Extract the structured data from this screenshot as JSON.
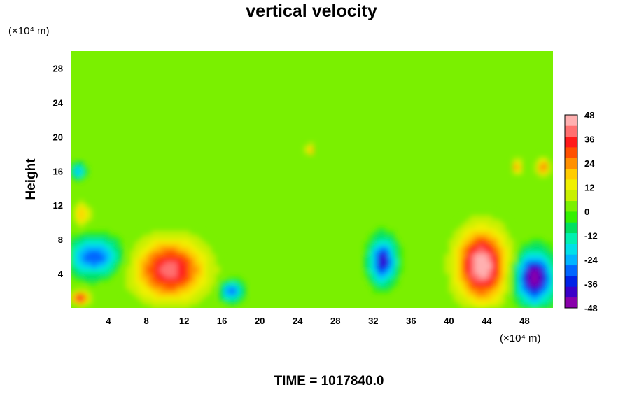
{
  "chart_data": {
    "type": "heatmap",
    "title": "vertical velocity",
    "ylabel": "Height",
    "xlabel": "",
    "x_unit_label": "(×10⁴ m)",
    "y_unit_label": "(×10⁴ m)",
    "xlim": [
      0,
      51
    ],
    "ylim": [
      0,
      30
    ],
    "x_ticks": [
      4,
      8,
      12,
      16,
      20,
      24,
      28,
      32,
      36,
      40,
      44,
      48
    ],
    "y_ticks": [
      4,
      8,
      12,
      16,
      20,
      24,
      28
    ],
    "colorbar": {
      "range": [
        -48,
        48
      ],
      "ticks": [
        48,
        36,
        24,
        12,
        0,
        -12,
        -24,
        -36,
        -48
      ],
      "colors": [
        "#8800aa",
        "#3a00c8",
        "#0022e6",
        "#0066ff",
        "#00b4ff",
        "#00e0e8",
        "#00f0b0",
        "#00e060",
        "#33f000",
        "#7af000",
        "#c8f000",
        "#f0f000",
        "#ffcc00",
        "#ff9000",
        "#ff5000",
        "#ff1a1a",
        "#ff7070",
        "#ffb0b0"
      ]
    },
    "background_value": 0,
    "features": [
      {
        "kind": "updraft",
        "x": 10.5,
        "y": 4.5,
        "rx": 4.5,
        "ry": 4.2,
        "peak": 40
      },
      {
        "kind": "updraft",
        "x": 43.5,
        "y": 5.0,
        "rx": 3.2,
        "ry": 5.0,
        "peak": 48
      },
      {
        "kind": "updraft",
        "x": 1.0,
        "y": 1.2,
        "rx": 1.1,
        "ry": 0.9,
        "peak": 38
      },
      {
        "kind": "updraft",
        "x": 1.2,
        "y": 11.0,
        "rx": 1.0,
        "ry": 1.6,
        "peak": 20
      },
      {
        "kind": "downdraft",
        "x": 49.0,
        "y": 3.5,
        "rx": 2.4,
        "ry": 3.5,
        "peak": -48
      },
      {
        "kind": "downdraft",
        "x": 33.0,
        "y": 5.5,
        "rx": 1.6,
        "ry": 3.0,
        "peak": -40
      },
      {
        "kind": "downdraft",
        "x": 2.5,
        "y": 6.0,
        "rx": 3.2,
        "ry": 2.6,
        "peak": -32
      },
      {
        "kind": "downdraft",
        "x": 17.0,
        "y": 2.0,
        "rx": 1.4,
        "ry": 1.4,
        "peak": -30
      },
      {
        "kind": "downdraft",
        "x": 0.8,
        "y": 16.0,
        "rx": 0.8,
        "ry": 1.0,
        "peak": -26
      },
      {
        "kind": "updraft",
        "x": 50.0,
        "y": 16.5,
        "rx": 0.8,
        "ry": 1.2,
        "peak": 28
      },
      {
        "kind": "updraft",
        "x": 47.2,
        "y": 16.5,
        "rx": 0.6,
        "ry": 1.0,
        "peak": 26
      },
      {
        "kind": "updraft",
        "x": 25.3,
        "y": 18.5,
        "rx": 0.5,
        "ry": 0.7,
        "peak": 26
      }
    ]
  },
  "footer": {
    "time_label": "TIME = 1017840.0"
  }
}
